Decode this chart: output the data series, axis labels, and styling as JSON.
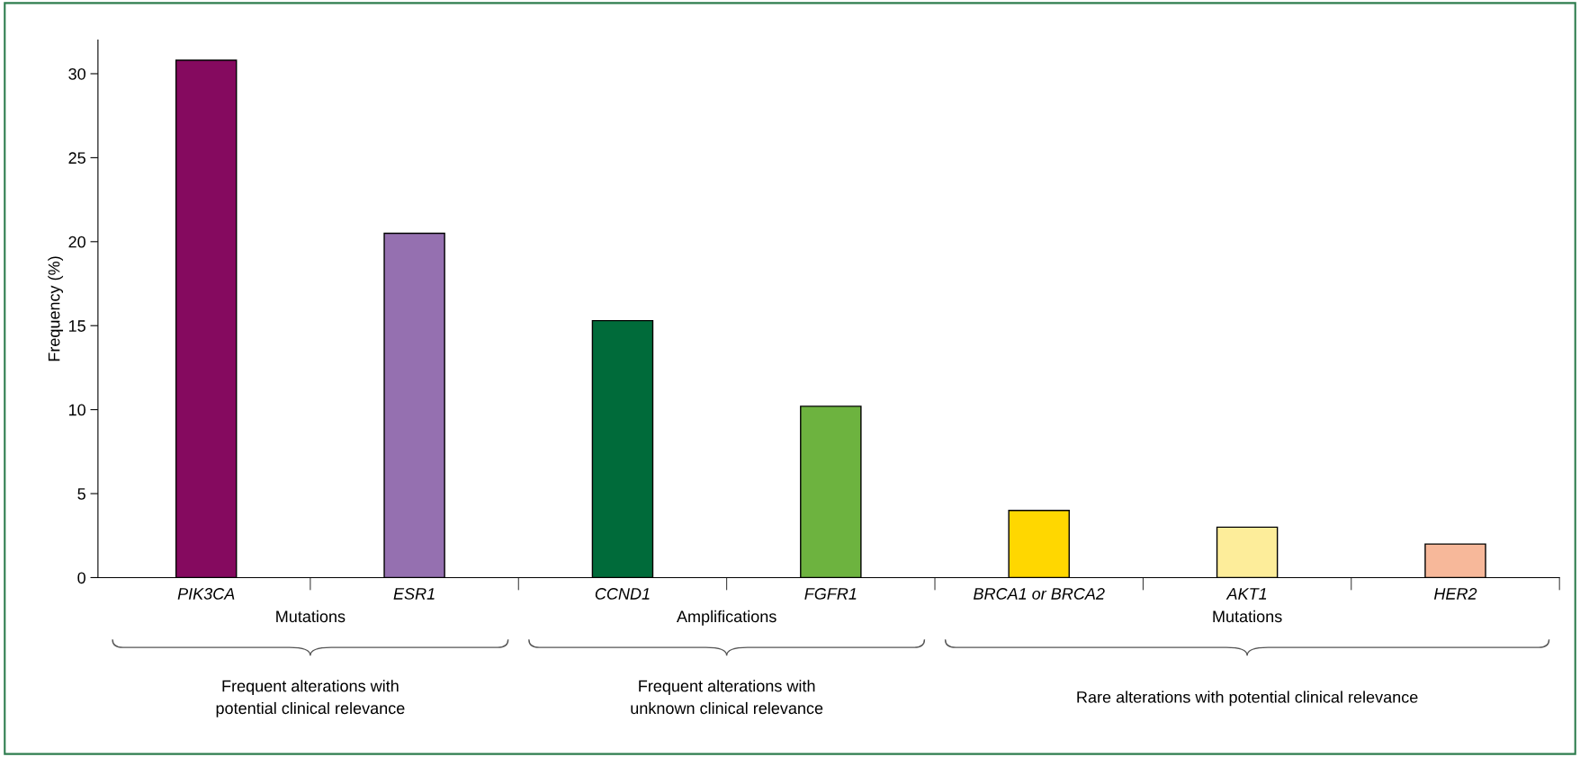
{
  "chart_data": {
    "type": "bar",
    "ylabel": "Frequency (%)",
    "categories": [
      "PIK3CA",
      "ESR1",
      "CCND1",
      "FGFR1",
      "BRCA1 or BRCA2",
      "AKT1",
      "HER2"
    ],
    "values": [
      30.8,
      20.5,
      15.3,
      10.2,
      4.0,
      3.0,
      2.0
    ],
    "colors": [
      "#850a5f",
      "#9570b0",
      "#006b3a",
      "#6db33f",
      "#ffd700",
      "#fded9a",
      "#f7b89a"
    ],
    "ylim": [
      0,
      32
    ],
    "yticks": [
      0,
      5,
      10,
      15,
      20,
      25,
      30
    ],
    "grid": false,
    "legend": false,
    "annotations": [
      "Mutations",
      "Amplifications",
      "Mutations",
      "Frequent alterations with\npotential clinical relevance",
      "Frequent alterations with\nunknown clinical relevance",
      "Rare alterations with potential clinical relevance"
    ]
  }
}
